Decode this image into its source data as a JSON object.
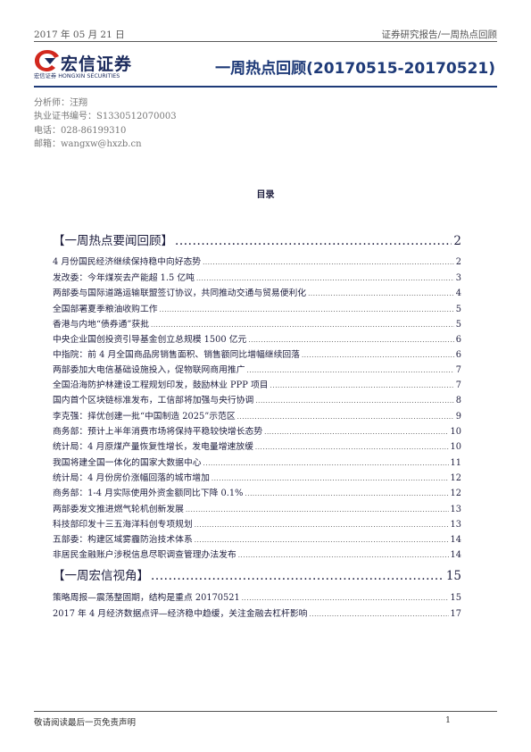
{
  "header": {
    "date": "2017 年 05 月 21 日",
    "category": "证券研究报告/一周热点回顾"
  },
  "logo": {
    "cn": "宏信证券",
    "en": "宏信证券  HONGXIN SECURITIES"
  },
  "title": "一周热点回顾(20170515-20170521)",
  "analyst": {
    "name": "分析师：汪翔",
    "license": "执业证书编号：S1330512070003",
    "phone": "电话：028-86199310",
    "email": "邮箱：wangxw@hxzb.cn"
  },
  "toc": {
    "heading": "目录",
    "rows": [
      {
        "kind": "sec",
        "text": "【一周热点要闻回顾】",
        "page": "2"
      },
      {
        "kind": "ent",
        "text": "4 月份国民经济继续保持稳中向好态势",
        "page": "2"
      },
      {
        "kind": "ent",
        "text": "发改委：今年煤炭去产能超 1.5 亿吨",
        "page": "3"
      },
      {
        "kind": "ent",
        "text": "两部委与国际道路运输联盟签订协议，共同推动交通与贸易便利化",
        "page": "4"
      },
      {
        "kind": "ent",
        "text": "全国部署夏季粮油收购工作",
        "page": "5"
      },
      {
        "kind": "ent",
        "text": "香港与内地“债券通”获批",
        "page": "5"
      },
      {
        "kind": "ent",
        "text": "中央企业国创投资引导基金创立总规模 1500 亿元",
        "page": "6"
      },
      {
        "kind": "ent",
        "text": "中指院：前 4 月全国商品房销售面积、销售额同比增幅继续回落",
        "page": "6"
      },
      {
        "kind": "ent",
        "text": "两部委加大电信基础设施投入，促物联网商用推广",
        "page": "7"
      },
      {
        "kind": "ent",
        "text": "全国沿海防护林建设工程规划印发，鼓励林业 PPP 项目",
        "page": "7"
      },
      {
        "kind": "ent",
        "text": "国内首个区块链标准发布，工信部将加强与央行协调",
        "page": "8"
      },
      {
        "kind": "ent",
        "text": "李克强：择优创建一批“中国制造 2025”示范区",
        "page": "9"
      },
      {
        "kind": "ent",
        "text": "商务部：预计上半年消费市场将保持平稳较快增长态势",
        "page": "10"
      },
      {
        "kind": "ent",
        "text": "统计局：4 月原煤产量恢复性增长，发电量增速放缓",
        "page": "10"
      },
      {
        "kind": "ent",
        "text": "我国将建全国一体化的国家大数据中心",
        "page": "11"
      },
      {
        "kind": "ent",
        "text": "统计局：4 月份房价涨幅回落的城市增加",
        "page": "12"
      },
      {
        "kind": "ent",
        "text": "商务部：1-4 月实际使用外资金额同比下降 0.1%",
        "page": "12"
      },
      {
        "kind": "ent",
        "text": "两部委发文推进燃气轮机创新发展",
        "page": "13"
      },
      {
        "kind": "ent",
        "text": "科技部印发十三五海洋科创专项规划",
        "page": "13"
      },
      {
        "kind": "ent",
        "text": "五部委：构建区域雾霾防治技术体系",
        "page": "14"
      },
      {
        "kind": "ent",
        "text": "非居民金融账户涉税信息尽职调查管理办法发布",
        "page": "14"
      },
      {
        "kind": "sec",
        "text": "【一周宏信视角】",
        "page": "15"
      },
      {
        "kind": "ent",
        "text": "策略周报—震荡整固期，结构是重点 20170521",
        "page": "15"
      },
      {
        "kind": "ent",
        "text": "2017 年 4 月经济数据点评—经济稳中趋缓，关注金融去杠杆影响",
        "page": "17"
      }
    ]
  },
  "footer": {
    "disclaimer": "敬请阅读最后一页免责声明",
    "page_number": "1"
  }
}
